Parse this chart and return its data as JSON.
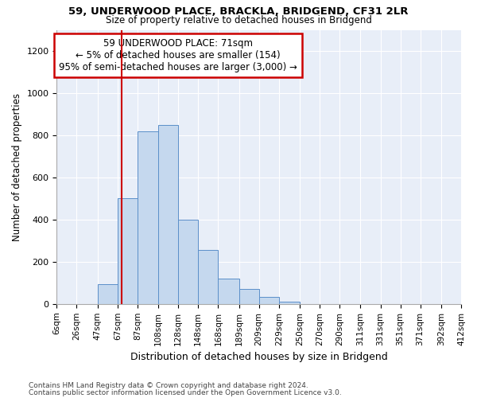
{
  "title1": "59, UNDERWOOD PLACE, BRACKLA, BRIDGEND, CF31 2LR",
  "title2": "Size of property relative to detached houses in Bridgend",
  "xlabel": "Distribution of detached houses by size in Bridgend",
  "ylabel": "Number of detached properties",
  "footnote1": "Contains HM Land Registry data © Crown copyright and database right 2024.",
  "footnote2": "Contains public sector information licensed under the Open Government Licence v3.0.",
  "annotation_line1": "59 UNDERWOOD PLACE: 71sqm",
  "annotation_line2": "← 5% of detached houses are smaller (154)",
  "annotation_line3": "95% of semi-detached houses are larger (3,000) →",
  "bar_edges": [
    6,
    26,
    47,
    67,
    87,
    108,
    128,
    148,
    168,
    189,
    209,
    229,
    250,
    270,
    290,
    311,
    331,
    351,
    371,
    392,
    412
  ],
  "bar_heights": [
    0,
    0,
    95,
    500,
    820,
    850,
    400,
    255,
    120,
    70,
    35,
    10,
    0,
    0,
    0,
    0,
    0,
    0,
    0,
    0
  ],
  "red_line_x": 71,
  "ylim": [
    0,
    1300
  ],
  "yticks": [
    0,
    200,
    400,
    600,
    800,
    1000,
    1200
  ],
  "bar_color": "#c5d8ee",
  "bar_edge_color": "#5b8fc9",
  "red_line_color": "#cc0000",
  "annotation_box_color": "#cc0000",
  "background_color": "#ffffff",
  "plot_bg_color": "#e8eef8"
}
